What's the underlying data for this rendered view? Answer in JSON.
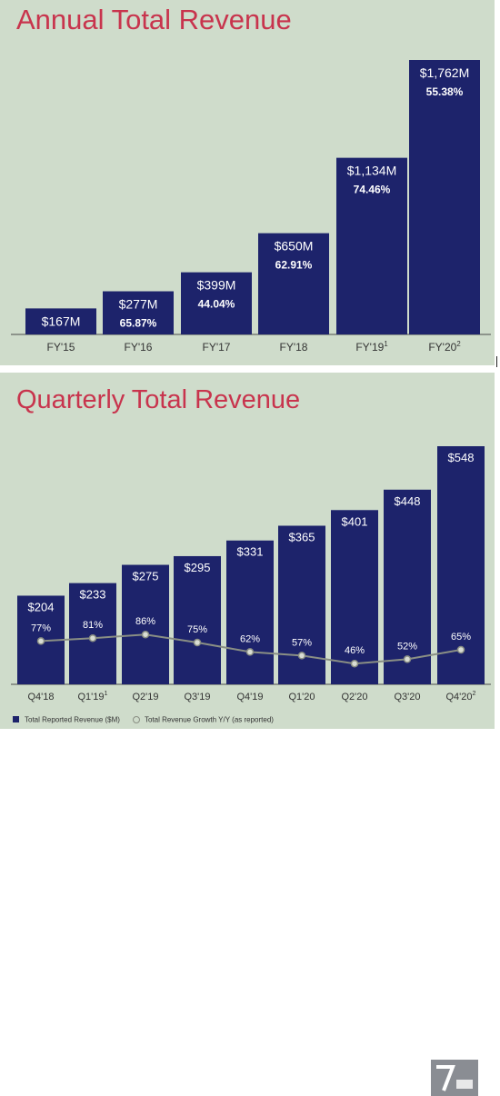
{
  "chart_data": [
    {
      "type": "bar",
      "title": "Annual Total Revenue",
      "categories": [
        "FY'15",
        "FY'16",
        "FY'17",
        "FY'18",
        "FY'19",
        "FY'20"
      ],
      "category_superscripts": [
        "",
        "",
        "",
        "",
        "1",
        "2"
      ],
      "series": [
        {
          "values": [
            167,
            277,
            399,
            650,
            1134,
            1762
          ]
        },
        {
          "values": [
            null,
            65.87,
            44.04,
            62.91,
            74.46,
            55.38
          ]
        }
      ],
      "value_labels": [
        "$167M",
        "$277M",
        "$399M",
        "$650M",
        "$1,134M",
        "$1,762M"
      ],
      "growth_labels": [
        "",
        "65.87%",
        "44.04%",
        "62.91%",
        "74.46%",
        "55.38%"
      ],
      "colors": {
        "bar": "#1d236b",
        "title": "#c8344d",
        "panel_bg": "#cfdccb"
      }
    },
    {
      "type": "bar",
      "title": "Quarterly Total Revenue",
      "categories": [
        "Q4'18",
        "Q1'19",
        "Q2'19",
        "Q3'19",
        "Q4'19",
        "Q1'20",
        "Q2'20",
        "Q3'20",
        "Q4'20"
      ],
      "category_superscripts": [
        "",
        "1",
        "",
        "",
        "",
        "",
        "",
        "",
        "2"
      ],
      "series": [
        {
          "name": "Total Reported Revenue ($M)",
          "values": [
            204,
            233,
            275,
            295,
            331,
            365,
            401,
            448,
            548
          ]
        },
        {
          "name": "Total Revenue Growth Y/Y (as reported)",
          "values": [
            77,
            81,
            86,
            75,
            62,
            57,
            46,
            52,
            65
          ]
        }
      ],
      "value_labels": [
        "$204",
        "$233",
        "$275",
        "$295",
        "$331",
        "$365",
        "$401",
        "$448",
        "$548"
      ],
      "growth_labels": [
        "77%",
        "81%",
        "86%",
        "75%",
        "62%",
        "57%",
        "46%",
        "52%",
        "65%"
      ],
      "legend": [
        "Total Reported Revenue ($M)",
        "Total Revenue Growth Y/Y (as reported)"
      ],
      "legend_placement": "bottom-left",
      "colors": {
        "bar": "#1d236b",
        "line": "#8a8f84",
        "title": "#c8344d",
        "panel_bg": "#cfdccb"
      }
    }
  ]
}
